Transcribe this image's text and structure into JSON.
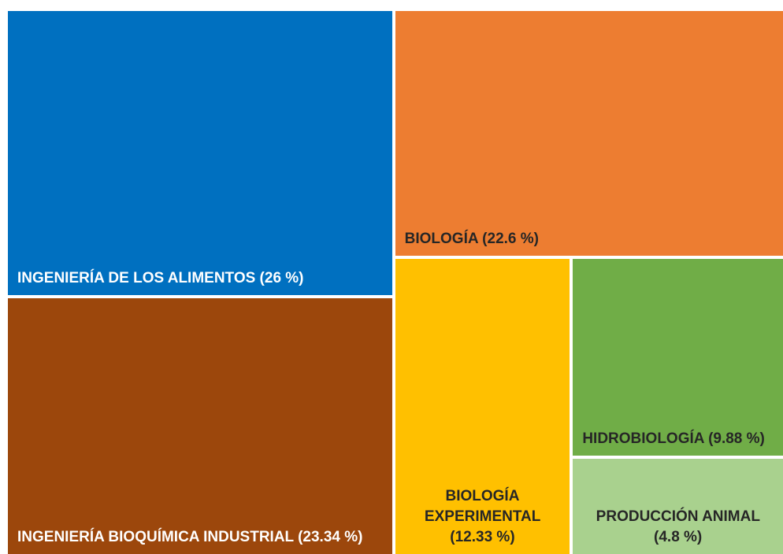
{
  "chart_data": {
    "type": "treemap",
    "categories": [
      "INGENIERÍA DE LOS ALIMENTOS",
      "INGENIERÍA BIOQUÍMICA INDUSTRIAL",
      "BIOLOGÍA",
      "BIOLOGÍA EXPERIMENTAL",
      "HIDROBIOLOGÍA",
      "PRODUCCIÓN ANIMAL"
    ],
    "values": [
      26,
      23.34,
      22.6,
      12.33,
      9.88,
      4.8
    ],
    "value_labels": [
      "(26 %)",
      "(23.34 %)",
      "(22.6 %)",
      "(12.33 %)",
      "(9.88 %)",
      "(4.8 %)"
    ],
    "colors": [
      "#0070c0",
      "#9c470c",
      "#ed7d31",
      "#ffc000",
      "#70ad47",
      "#a9d18e"
    ]
  }
}
